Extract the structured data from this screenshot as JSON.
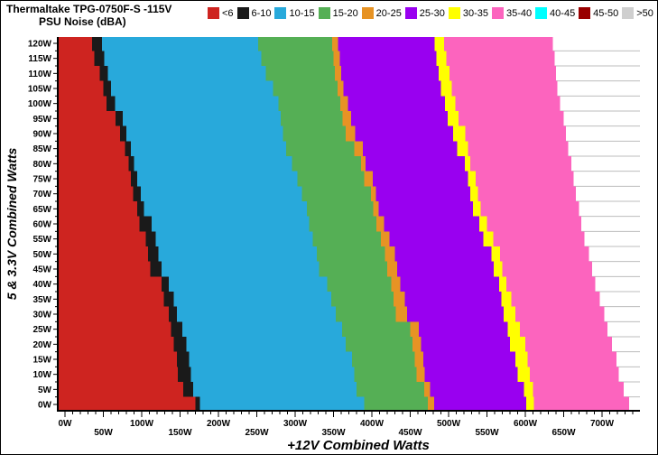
{
  "header": {
    "title_line1": "Thermaltake TPG-0750F-S -115V",
    "title_line2": "PSU Noise (dBA)"
  },
  "legend": {
    "items": [
      {
        "label": "<6",
        "color": "#CE2420"
      },
      {
        "label": "6-10",
        "color": "#1A1A1A"
      },
      {
        "label": "10-15",
        "color": "#28A9DB"
      },
      {
        "label": "15-20",
        "color": "#55AF55"
      },
      {
        "label": "20-25",
        "color": "#E79324"
      },
      {
        "label": "25-30",
        "color": "#9900F0"
      },
      {
        "label": "30-35",
        "color": "#FFFF00"
      },
      {
        "label": "35-40",
        "color": "#FC64BE"
      },
      {
        "label": "40-45",
        "color": "#00FFFF"
      },
      {
        "label": "45-50",
        "color": "#990000"
      },
      {
        "label": ">50",
        "color": "#CFCFCF"
      }
    ]
  },
  "chart_data": {
    "type": "heatmap",
    "title": "Thermaltake TPG-0750F-S -115V PSU Noise (dBA)",
    "xlabel": "+12V Combined Watts",
    "ylabel": "5 & 3.3V Combined Watts",
    "xlim": [
      -8,
      750
    ],
    "ylim": [
      -2,
      122
    ],
    "grid": "horizontal gridlines visible in unmeasured (white) region",
    "grid_color": "#BDBDBD",
    "legend_position": "top",
    "band_colors": [
      "#CE2420",
      "#1A1A1A",
      "#28A9DB",
      "#55AF55",
      "#E79324",
      "#9900F0",
      "#FFFF00",
      "#FC64BE"
    ],
    "band_labels_dBA": [
      "<6",
      "6-10",
      "10-15",
      "15-20",
      "20-25",
      "25-30",
      "30-35",
      "35-40"
    ],
    "rows_5v_watts": [
      120,
      115,
      110,
      105,
      100,
      95,
      90,
      85,
      80,
      75,
      70,
      65,
      60,
      55,
      50,
      45,
      40,
      35,
      30,
      25,
      20,
      15,
      10,
      5,
      0
    ],
    "contours": [
      {
        "level_dBA": 6,
        "values": [
          35,
          38,
          45,
          50,
          54,
          66,
          72,
          78,
          83,
          86,
          89,
          94,
          97,
          105,
          108,
          111,
          126,
          129,
          135,
          138,
          142,
          146,
          147,
          154,
          170
        ]
      },
      {
        "level_dBA": 10,
        "values": [
          48,
          51,
          56,
          60,
          65,
          75,
          80,
          86,
          90,
          94,
          99,
          103,
          113,
          118,
          122,
          126,
          135,
          142,
          146,
          153,
          158,
          162,
          164,
          167,
          176
        ]
      },
      {
        "level_dBA": 15,
        "values": [
          252,
          256,
          262,
          271,
          278,
          281,
          284,
          288,
          296,
          303,
          309,
          315,
          318,
          323,
          328,
          331,
          342,
          347,
          353,
          361,
          366,
          374,
          377,
          380,
          390
        ]
      },
      {
        "level_dBA": 20,
        "values": [
          348,
          350,
          352,
          355,
          359,
          362,
          366,
          377,
          386,
          390,
          399,
          402,
          406,
          412,
          417,
          420,
          425,
          428,
          431,
          450,
          453,
          456,
          458,
          468,
          473
        ]
      },
      {
        "level_dBA": 25,
        "values": [
          356,
          358,
          360,
          363,
          369,
          373,
          378,
          388,
          392,
          401,
          405,
          409,
          416,
          423,
          430,
          433,
          437,
          443,
          446,
          461,
          464,
          467,
          469,
          476,
          481
        ]
      },
      {
        "level_dBA": 30,
        "values": [
          482,
          484,
          487,
          490,
          495,
          499,
          506,
          511,
          521,
          525,
          528,
          532,
          540,
          545,
          556,
          559,
          566,
          569,
          572,
          577,
          580,
          587,
          590,
          598,
          601
        ]
      },
      {
        "level_dBA": 35,
        "values": [
          494,
          497,
          501,
          504,
          509,
          513,
          522,
          525,
          528,
          535,
          538,
          542,
          550,
          558,
          567,
          570,
          575,
          582,
          587,
          593,
          600,
          603,
          606,
          610,
          611
        ]
      },
      {
        "level_dBA": 40,
        "values": [
          636,
          638,
          640,
          642,
          645,
          650,
          653,
          656,
          660,
          663,
          666,
          670,
          673,
          677,
          683,
          687,
          691,
          697,
          703,
          707,
          713,
          719,
          722,
          728,
          735
        ]
      }
    ],
    "x_ticks": [
      {
        "v": 0,
        "label": "0W",
        "row": 1
      },
      {
        "v": 50,
        "label": "50W",
        "row": 2
      },
      {
        "v": 100,
        "label": "100W",
        "row": 1
      },
      {
        "v": 150,
        "label": "150W",
        "row": 2
      },
      {
        "v": 200,
        "label": "200W",
        "row": 1
      },
      {
        "v": 250,
        "label": "250W",
        "row": 2
      },
      {
        "v": 300,
        "label": "300W",
        "row": 1
      },
      {
        "v": 350,
        "label": "350W",
        "row": 2
      },
      {
        "v": 400,
        "label": "400W",
        "row": 1
      },
      {
        "v": 450,
        "label": "450W",
        "row": 2
      },
      {
        "v": 500,
        "label": "500W",
        "row": 1
      },
      {
        "v": 550,
        "label": "550W",
        "row": 2
      },
      {
        "v": 600,
        "label": "600W",
        "row": 1
      },
      {
        "v": 650,
        "label": "650W",
        "row": 2
      },
      {
        "v": 700,
        "label": "700W",
        "row": 1
      }
    ],
    "y_ticks": [
      {
        "v": 120,
        "label": "120W"
      },
      {
        "v": 115,
        "label": "115W"
      },
      {
        "v": 110,
        "label": "110W"
      },
      {
        "v": 105,
        "label": "105W"
      },
      {
        "v": 100,
        "label": "100W"
      },
      {
        "v": 95,
        "label": "95W"
      },
      {
        "v": 90,
        "label": "90W"
      },
      {
        "v": 85,
        "label": "85W"
      },
      {
        "v": 80,
        "label": "80W"
      },
      {
        "v": 75,
        "label": "75W"
      },
      {
        "v": 70,
        "label": "70W"
      },
      {
        "v": 65,
        "label": "65W"
      },
      {
        "v": 60,
        "label": "60W"
      },
      {
        "v": 55,
        "label": "55W"
      },
      {
        "v": 50,
        "label": "50W"
      },
      {
        "v": 45,
        "label": "45W"
      },
      {
        "v": 40,
        "label": "40W"
      },
      {
        "v": 35,
        "label": "35W"
      },
      {
        "v": 30,
        "label": "30W"
      },
      {
        "v": 25,
        "label": "25W"
      },
      {
        "v": 20,
        "label": "20W"
      },
      {
        "v": 15,
        "label": "15W"
      },
      {
        "v": 10,
        "label": "10W"
      },
      {
        "v": 5,
        "label": "5W"
      },
      {
        "v": 0,
        "label": "0W"
      }
    ],
    "x_minor_step": 10,
    "x_minor_end": 750,
    "y_minor_step": 2.5
  }
}
